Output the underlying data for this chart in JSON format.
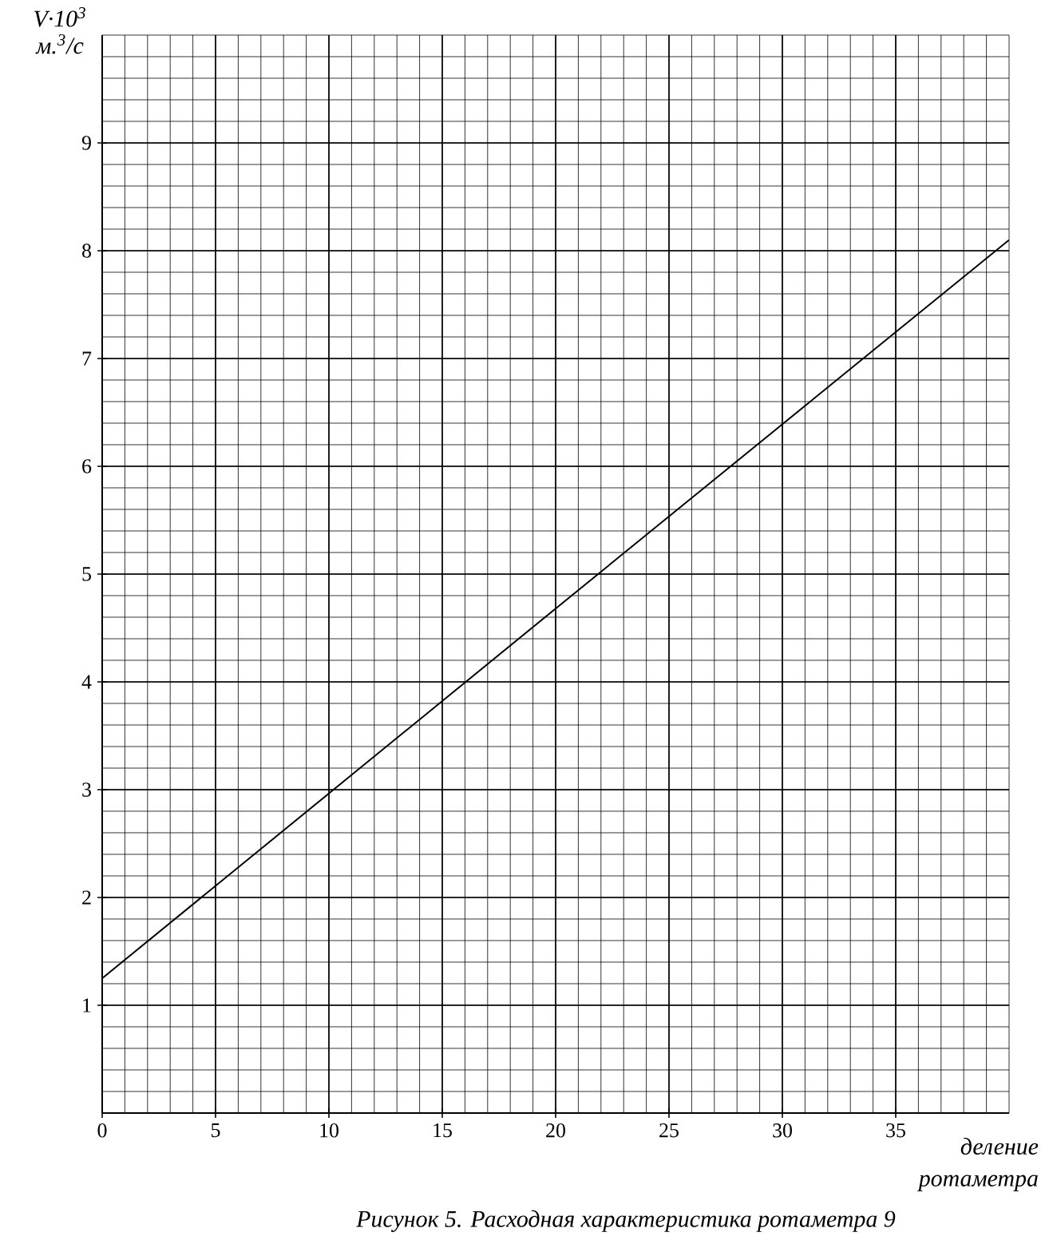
{
  "chart_data": {
    "type": "line",
    "title": "Рисунок 5. Расходная характеристика ротаметра 9",
    "xlabel": "деление ротаметра",
    "ylabel": "V·10$^{3}$ м.$^{3}$/с",
    "x": [
      0,
      20,
      40
    ],
    "series": [
      {
        "color": "#000000",
        "values": [
          1.25,
          4.68,
          8.1
        ]
      }
    ],
    "xlim": [
      0,
      40
    ],
    "ylim": [
      0,
      10
    ],
    "xticks": [
      0,
      5,
      10,
      15,
      20,
      25,
      30,
      35
    ],
    "yticks": [
      1,
      2,
      3,
      4,
      5,
      6,
      7,
      8,
      9
    ],
    "grid": true,
    "marker": "none",
    "line_style": "solid"
  }
}
